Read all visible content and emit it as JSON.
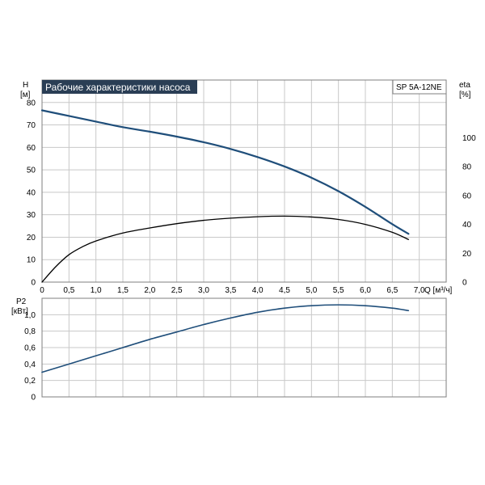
{
  "chart_data": [
    {
      "type": "line",
      "title": "Рабочие характеристики насоса",
      "model": "SP 5A-12NE",
      "xlabel": "Q [м³/ч]",
      "ylabel_left": "H",
      "ylabel_left_unit": "[м]",
      "ylabel_right": "eta",
      "ylabel_right_unit": "[%]",
      "xlim": [
        0,
        7.5
      ],
      "ylim_left": [
        0,
        90
      ],
      "ylim_right": [
        0,
        140
      ],
      "grid": true,
      "x_ticks": [
        "0",
        "0,5",
        "1,0",
        "1,5",
        "2,0",
        "2,5",
        "3,0",
        "3,5",
        "4,0",
        "4,5",
        "5,0",
        "5,5",
        "6,0",
        "6,5",
        "7,0"
      ],
      "y_left_ticks": [
        "0",
        "10",
        "20",
        "30",
        "40",
        "50",
        "60",
        "70",
        "80"
      ],
      "y_right_ticks": [
        "0",
        "20",
        "40",
        "60",
        "80",
        "100"
      ],
      "series": [
        {
          "axis": "left",
          "color": "#1f4e7a",
          "x": [
            0,
            0.5,
            1.0,
            1.5,
            2.0,
            2.5,
            3.0,
            3.5,
            4.0,
            4.5,
            5.0,
            5.5,
            6.0,
            6.5,
            6.8
          ],
          "values": [
            76.5,
            74,
            71.5,
            69,
            67,
            64.8,
            62.3,
            59.3,
            55.7,
            51.5,
            46.5,
            40.5,
            33.5,
            25.8,
            21.5
          ]
        },
        {
          "axis": "right",
          "color": "#000000",
          "x": [
            0,
            0.25,
            0.5,
            0.75,
            1.0,
            1.5,
            2.0,
            2.5,
            3.0,
            3.5,
            4.0,
            4.5,
            5.0,
            5.5,
            6.0,
            6.5,
            6.8
          ],
          "values": [
            0,
            10.5,
            19,
            24.5,
            28.5,
            34,
            37.5,
            40.5,
            42.8,
            44.3,
            45.3,
            45.7,
            45.1,
            43.4,
            40,
            34.5,
            29.5
          ]
        }
      ]
    },
    {
      "type": "line",
      "ylabel": "P2",
      "ylabel_unit": "[кВт]",
      "xlim": [
        0,
        7.5
      ],
      "ylim": [
        0,
        1.2
      ],
      "grid": true,
      "y_ticks": [
        "0",
        "0,2",
        "0,4",
        "0,6",
        "0,8",
        "1,0"
      ],
      "series": [
        {
          "color": "#1f4e7a",
          "x": [
            0,
            0.5,
            1.0,
            1.5,
            2.0,
            2.5,
            3.0,
            3.5,
            4.0,
            4.5,
            5.0,
            5.5,
            6.0,
            6.5,
            6.8
          ],
          "values": [
            0.3,
            0.4,
            0.5,
            0.6,
            0.7,
            0.79,
            0.88,
            0.96,
            1.03,
            1.08,
            1.11,
            1.12,
            1.11,
            1.08,
            1.05
          ]
        }
      ]
    }
  ]
}
